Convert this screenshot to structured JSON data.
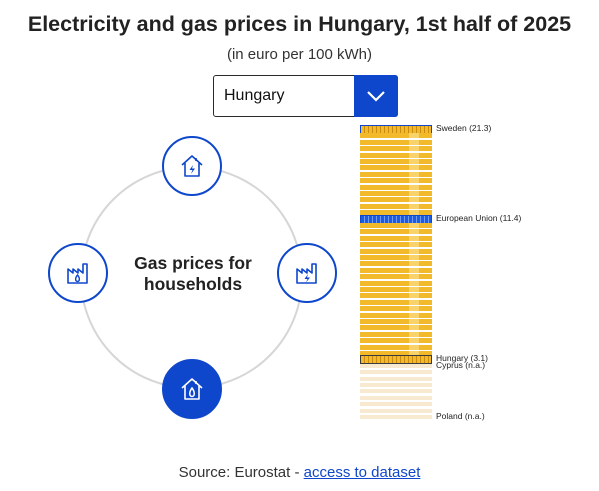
{
  "title": "Electricity and gas prices in Hungary, 1st half of 2025",
  "subtitle": "(in euro per 100 kWh)",
  "country_select": {
    "value": "Hungary",
    "icon": "chevron-down-icon"
  },
  "circle": {
    "center_line1": "Gas prices for",
    "center_line2": "households",
    "nodes": [
      {
        "id": "top",
        "icon": "house-electricity-icon",
        "active": false
      },
      {
        "id": "left",
        "icon": "factory-gas-icon",
        "active": false
      },
      {
        "id": "right",
        "icon": "factory-electricity-icon",
        "active": false
      },
      {
        "id": "bottom",
        "icon": "house-gas-icon",
        "active": true
      }
    ]
  },
  "colors": {
    "accent": "#0e47cb",
    "bar": "#f2b92a",
    "bar_stripe": "#f7d36a",
    "bar_na": "#f7ead0",
    "ring": "#d6d6d6"
  },
  "chart_data": {
    "type": "bar",
    "orientation": "horizontal",
    "unit": "euro per 100 kWh",
    "highlighted": [
      {
        "label": "Sweden (21.3)",
        "rank": 1,
        "style": "highlight"
      },
      {
        "label": "European Union (11.4)",
        "rank": 15,
        "style": "eu"
      },
      {
        "label": "Hungary (3.1)",
        "rank": 37,
        "style": "highlight"
      },
      {
        "label": "Cyprus (n.a.)",
        "rank": 38,
        "style": "na"
      },
      {
        "label": "Poland (n.a.)",
        "rank": 46,
        "style": "na"
      }
    ],
    "bar_count": 46,
    "available_count": 37
  },
  "source": {
    "prefix": "Source: Eurostat - ",
    "link": "access to dataset"
  }
}
